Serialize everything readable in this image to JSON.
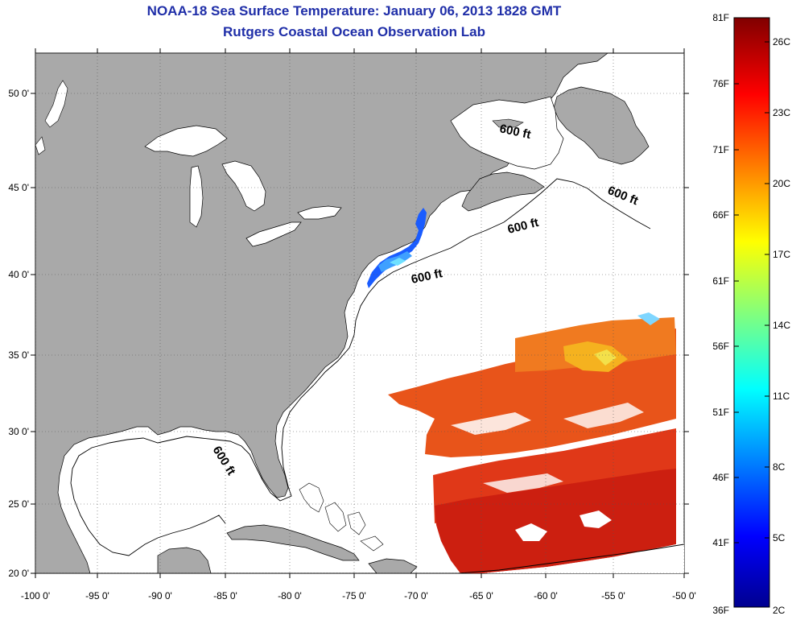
{
  "header": {
    "title_line1": "NOAA-18 Sea Surface Temperature:  January 06, 2013 1828 GMT",
    "title_line2": "Rutgers Coastal Ocean Observation Lab"
  },
  "map": {
    "lat_labels": [
      "50 0'",
      "45 0'",
      "40 0'",
      "35 0'",
      "30 0'",
      "25 0'",
      "20 0'"
    ],
    "lon_labels": [
      "-100 0'",
      "-95 0'",
      "-90 0'",
      "-85 0'",
      "-80 0'",
      "-75 0'",
      "-70 0'",
      "-65 0'",
      "-60 0'",
      "-55 0'",
      "-50 0'"
    ],
    "contour_label": "600 ft"
  },
  "colorbar": {
    "f_labels": [
      "81F",
      "76F",
      "71F",
      "66F",
      "61F",
      "56F",
      "51F",
      "46F",
      "41F",
      "36F"
    ],
    "c_labels": [
      "26C",
      "23C",
      "20C",
      "17C",
      "14C",
      "11C",
      "8C",
      "5C",
      "2C"
    ],
    "colors": [
      "#00008f",
      "#0000ff",
      "#00ffff",
      "#ffff00",
      "#ff0000",
      "#800000"
    ]
  },
  "colors": {
    "land": "#a9a9a9",
    "title": "#1f2ea8"
  }
}
